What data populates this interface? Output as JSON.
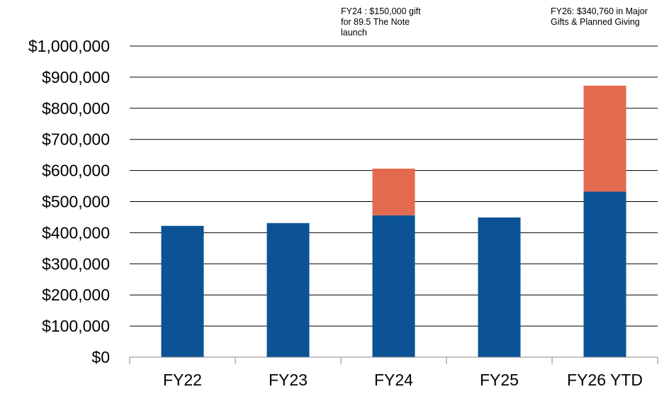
{
  "chart_data": {
    "type": "bar",
    "stacked": true,
    "categories": [
      "FY22",
      "FY23",
      "FY24",
      "FY25",
      "FY26 YTD"
    ],
    "series": [
      {
        "color": "#0b5394",
        "values": [
          422000,
          431000,
          456000,
          449000,
          532000
        ]
      },
      {
        "color": "#e36a4f",
        "values": [
          0,
          0,
          150000,
          0,
          340760
        ]
      }
    ],
    "y_ticks": [
      "$0",
      "$100,000",
      "$200,000",
      "$300,000",
      "$400,000",
      "$500,000",
      "$600,000",
      "$700,000",
      "$800,000",
      "$900,000",
      "$1,000,000"
    ],
    "ylim": [
      0,
      1000000
    ],
    "grid": true,
    "annotations": [
      {
        "text": "FY24 : $150,000 gift\nfor 89.5 The Note\nlaunch",
        "category": "FY24"
      },
      {
        "text": "FY26: $340,760 in Major\nGifts & Planned Giving",
        "category": "FY26 YTD"
      }
    ]
  }
}
